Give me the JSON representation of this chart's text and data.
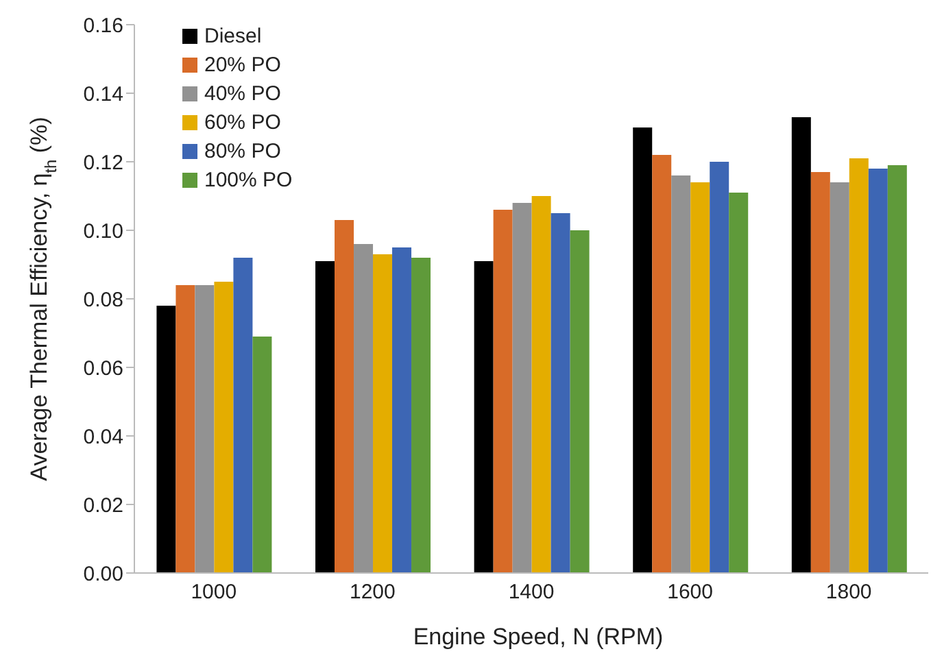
{
  "chart_data": {
    "type": "bar",
    "xlabel": "Engine Speed, N (RPM)",
    "ylabel": "Average Thermal Efficiency, η$_{th}$ (%)",
    "categories": [
      "1000",
      "1200",
      "1400",
      "1600",
      "1800"
    ],
    "series": [
      {
        "name": "Diesel",
        "color": "#000000",
        "values": [
          0.078,
          0.091,
          0.091,
          0.13,
          0.133
        ]
      },
      {
        "name": "20% PO",
        "color": "#d86b28",
        "values": [
          0.084,
          0.103,
          0.106,
          0.122,
          0.117
        ]
      },
      {
        "name": "40% PO",
        "color": "#929292",
        "values": [
          0.084,
          0.096,
          0.108,
          0.116,
          0.114
        ]
      },
      {
        "name": "60% PO",
        "color": "#e4ad00",
        "values": [
          0.085,
          0.093,
          0.11,
          0.114,
          0.121
        ]
      },
      {
        "name": "80% PO",
        "color": "#3d66b4",
        "values": [
          0.092,
          0.095,
          0.105,
          0.12,
          0.118
        ]
      },
      {
        "name": "100% PO",
        "color": "#5f9a3a",
        "values": [
          0.069,
          0.092,
          0.1,
          0.111,
          0.119
        ]
      }
    ],
    "ylim": [
      0,
      0.16
    ],
    "yticks": [
      {
        "value": 0,
        "label": "0.00"
      },
      {
        "value": 0.02,
        "label": "0.02"
      },
      {
        "value": 0.04,
        "label": "0.04"
      },
      {
        "value": 0.06,
        "label": "0.06"
      },
      {
        "value": 0.08,
        "label": "0.08"
      },
      {
        "value": 0.1,
        "label": "0.10"
      },
      {
        "value": 0.12,
        "label": "0.12"
      },
      {
        "value": 0.14,
        "label": "0.14"
      },
      {
        "value": 0.16,
        "label": "0.16"
      }
    ],
    "grid": false,
    "legend": "top left"
  }
}
